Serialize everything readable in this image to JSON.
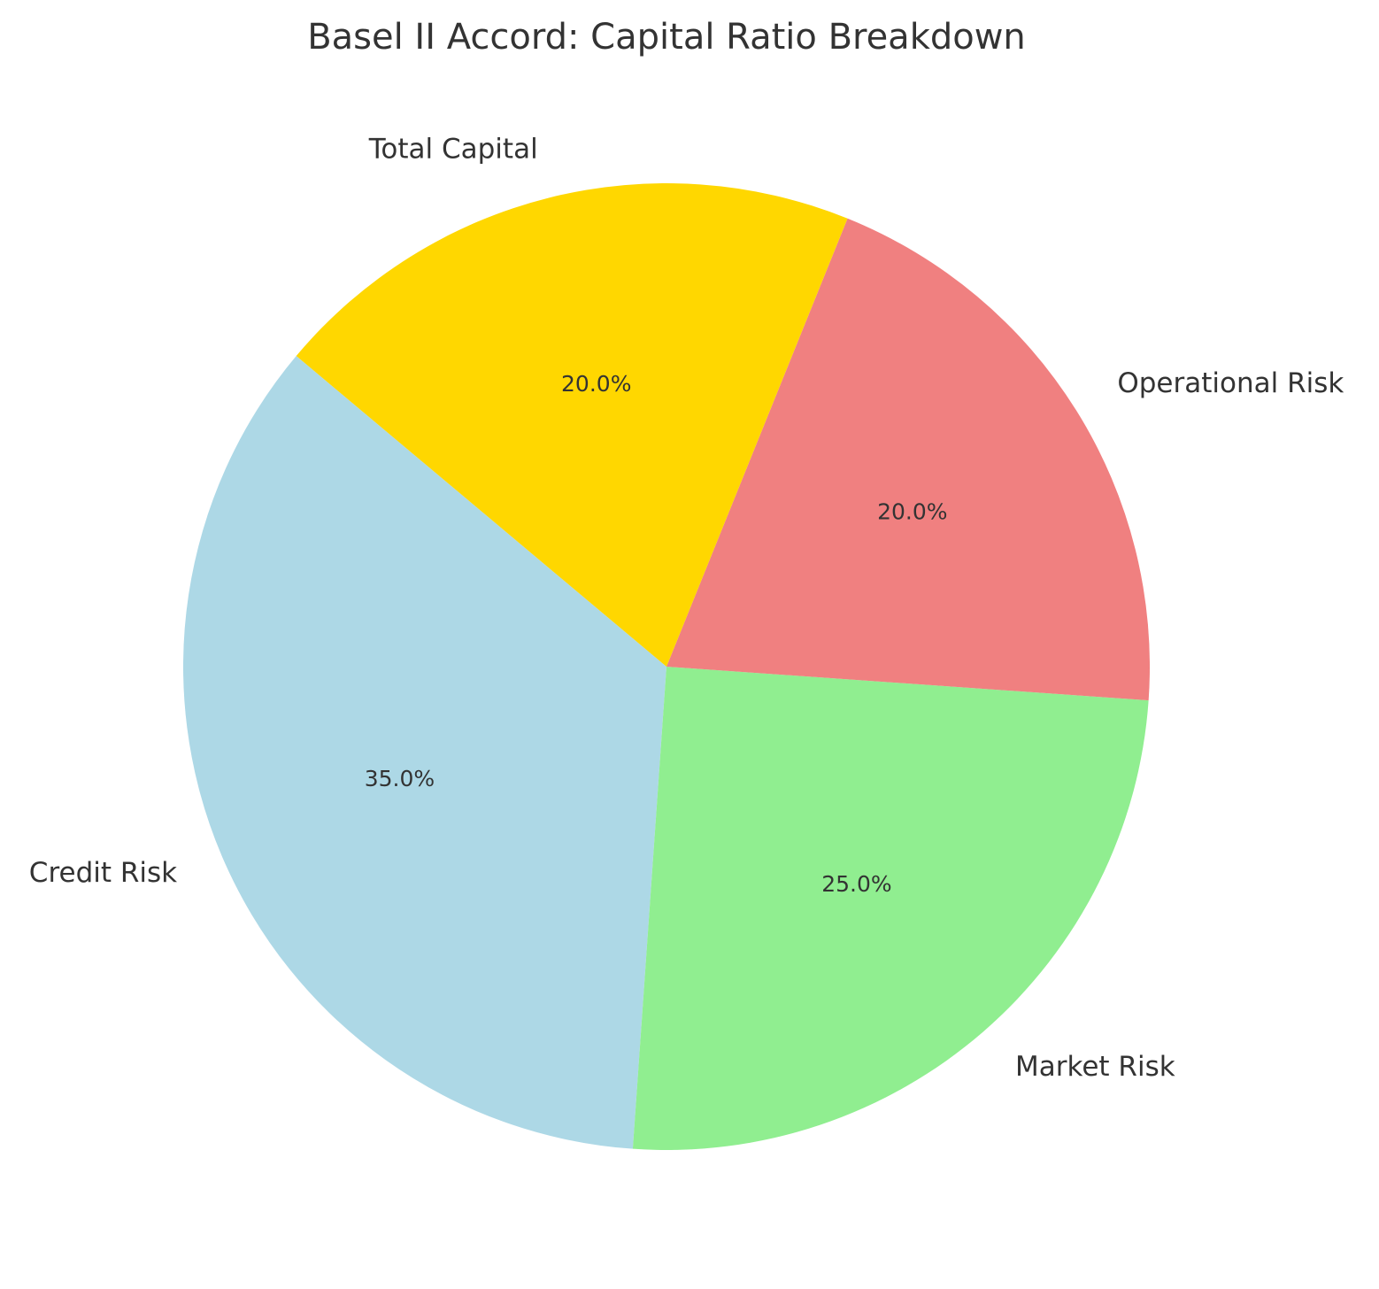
{
  "chart_data": {
    "type": "pie",
    "title": "Basel II Accord: Capital Ratio Breakdown",
    "categories": [
      "Credit Risk",
      "Market Risk",
      "Operational Risk",
      "Total Capital"
    ],
    "values": [
      35.0,
      25.0,
      20.0,
      20.0
    ],
    "value_labels": [
      "35.0%",
      "25.0%",
      "20.0%",
      "20.0%"
    ],
    "colors": [
      "#add8e6",
      "#90ee90",
      "#f08080",
      "#ffd700"
    ],
    "start_angle_deg": 140,
    "direction": "counterclockwise",
    "legend": "none"
  }
}
